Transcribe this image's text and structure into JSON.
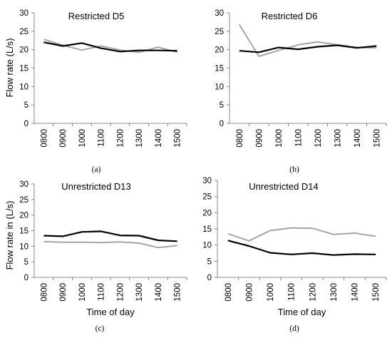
{
  "chart_data": [
    {
      "type": "line",
      "panel": "(a)",
      "title": "Restricted D5",
      "ylabel": "Flow rate (L/s)",
      "xlabel": "",
      "categories": [
        "0800",
        "0900",
        "1000",
        "1100",
        "1200",
        "1300",
        "1400",
        "1500"
      ],
      "ylim": [
        0,
        30
      ],
      "yticks": [
        "0",
        "5",
        "10",
        "15",
        "20",
        "25",
        "30"
      ],
      "series": [
        {
          "color": "#a6a6a6",
          "values": [
            22.8,
            21.2,
            19.9,
            21.0,
            19.9,
            19.3,
            20.7,
            19.3
          ]
        },
        {
          "color": "#000000",
          "values": [
            22.0,
            21.0,
            21.8,
            20.4,
            19.5,
            19.8,
            19.8,
            19.7
          ]
        }
      ]
    },
    {
      "type": "line",
      "panel": "(b)",
      "title": "Restricted D6",
      "ylabel": "",
      "xlabel": "",
      "categories": [
        "0800",
        "0900",
        "1000",
        "1100",
        "1200",
        "1300",
        "1400",
        "1500"
      ],
      "ylim": [
        0,
        30
      ],
      "yticks": [
        "0",
        "5",
        "10",
        "15",
        "20",
        "25",
        "30"
      ],
      "series": [
        {
          "color": "#a6a6a6",
          "values": [
            26.8,
            18.2,
            19.8,
            21.3,
            22.1,
            21.3,
            20.6,
            20.5
          ]
        },
        {
          "color": "#000000",
          "values": [
            19.7,
            19.3,
            20.6,
            20.1,
            20.8,
            21.2,
            20.5,
            21.0
          ]
        }
      ]
    },
    {
      "type": "line",
      "panel": "(c)",
      "title": "Unrestricted D13",
      "ylabel": "Flow rate in (L/s)",
      "xlabel": "Time of day",
      "categories": [
        "0800",
        "0900",
        "1000",
        "1100",
        "1200",
        "1300",
        "1400",
        "1500"
      ],
      "ylim": [
        0,
        30
      ],
      "yticks": [
        "0",
        "5",
        "10",
        "15",
        "20",
        "25",
        "30"
      ],
      "series": [
        {
          "color": "#a6a6a6",
          "values": [
            11.5,
            11.3,
            11.3,
            11.2,
            11.4,
            11.0,
            9.6,
            10.2
          ]
        },
        {
          "color": "#000000",
          "values": [
            13.4,
            13.2,
            14.6,
            14.8,
            13.5,
            13.4,
            11.9,
            11.6
          ]
        }
      ]
    },
    {
      "type": "line",
      "panel": "(d)",
      "title": "Unrestricted D14",
      "ylabel": "",
      "xlabel": "Time of day",
      "categories": [
        "0800",
        "0900",
        "1000",
        "1100",
        "1200",
        "1300",
        "1400",
        "1500"
      ],
      "ylim": [
        0,
        30
      ],
      "yticks": [
        "0",
        "5",
        "10",
        "15",
        "20",
        "25",
        "30"
      ],
      "series": [
        {
          "color": "#a6a6a6",
          "values": [
            13.5,
            11.3,
            14.5,
            15.3,
            15.2,
            13.3,
            13.7,
            12.7
          ]
        },
        {
          "color": "#000000",
          "values": [
            11.4,
            9.7,
            7.6,
            7.1,
            7.5,
            6.9,
            7.2,
            7.1
          ]
        }
      ]
    }
  ]
}
